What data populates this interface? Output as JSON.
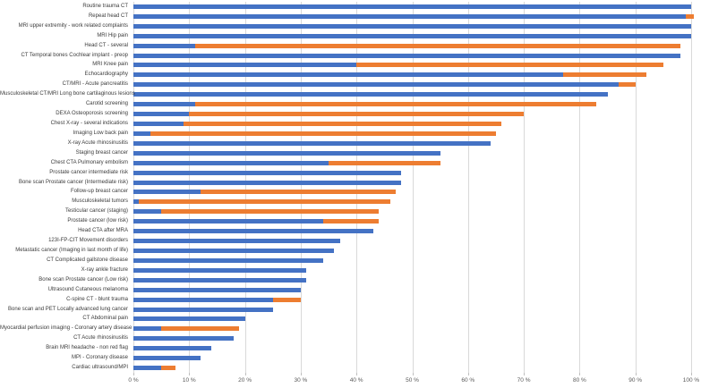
{
  "chart_data": {
    "type": "bar",
    "orientation": "horizontal",
    "stacked": true,
    "title": "",
    "xlabel": "",
    "ylabel": "",
    "xlim": [
      0,
      100
    ],
    "grid": true,
    "legend": false,
    "x_ticks": [
      "0 %",
      "10 %",
      "20 %",
      "30 %",
      "40 %",
      "50 %",
      "60 %",
      "70 %",
      "80 %",
      "90 %",
      "100 %"
    ],
    "categories": [
      "Routine trauma CT",
      "Repeat head CT",
      "MRI upper extremity - work related complaints",
      "MRI Hip pain",
      "Head CT - several",
      "CT Temporal bones Cochlear implant - preop",
      "MRI Knee pain",
      "Echocardiography",
      "CT/MRI - Acute pancreatitis",
      "Musculoskeletal CT/MRI Long bone cartilaginous lesions",
      "Carotid screening",
      "DEXA Osteoporosis screening",
      "Chest X-ray - several indications",
      "Imaging Low back pain",
      "X-ray Acute rhinosinusitis",
      "Staging breast cancer",
      "Chest CTA Pulmonary embolism",
      "Prostate cancer intermediate risk",
      "Bone scan Prostate cancer (Intermediate risk)",
      "Follow-up breast cancer",
      "Musculoskeletal tumors",
      "Testicular cancer (staging)",
      "Prostate cancer (low risk)",
      "Head CTA after MRA",
      "123I-FP-CIT Movement disorders",
      "Metastatic cancer (Imaging in last month of life)",
      "CT Complicated gallstone disease",
      "X-ray ankle fracture",
      "Bone scan Prostate cancer (Low risk)",
      "Ultrasound Cutaneous melanoma",
      "C-spine CT - blunt trauma",
      "Bone scan and PET Locally advanced lung cancer",
      "CT Abdominal pain",
      "Myocardial perfusion imaging - Coronary artery disease",
      "CT Acute rhinosinusitis",
      "Brain MRI headache - non red flag",
      "MPI - Coronary disease",
      "Cardiac ultrasound/MPI"
    ],
    "series": [
      {
        "color": "#4472C4",
        "values": [
          100,
          99,
          100,
          100,
          11,
          98,
          40,
          77,
          87,
          85,
          11,
          10,
          9,
          3,
          64,
          55,
          35,
          48,
          48,
          12,
          1,
          5,
          34,
          43,
          37,
          36,
          34,
          31,
          31,
          30,
          25,
          25,
          20,
          5,
          18,
          14,
          12,
          5
        ]
      },
      {
        "color": "#ED7D31",
        "values": [
          0,
          1.5,
          0,
          0,
          87,
          0,
          55,
          15,
          3,
          0,
          72,
          60,
          57,
          62,
          0,
          0,
          20,
          0,
          0,
          35,
          45,
          39,
          10,
          0,
          0,
          0,
          0,
          0,
          0,
          0,
          5,
          0,
          0,
          14,
          0,
          0,
          0,
          2.5
        ]
      }
    ]
  },
  "colors": {
    "grid": "#d9d9d9",
    "axis_text": "#595959",
    "category_text": "#3b3b3b",
    "series1": "#4472C4",
    "series2": "#ED7D31"
  }
}
